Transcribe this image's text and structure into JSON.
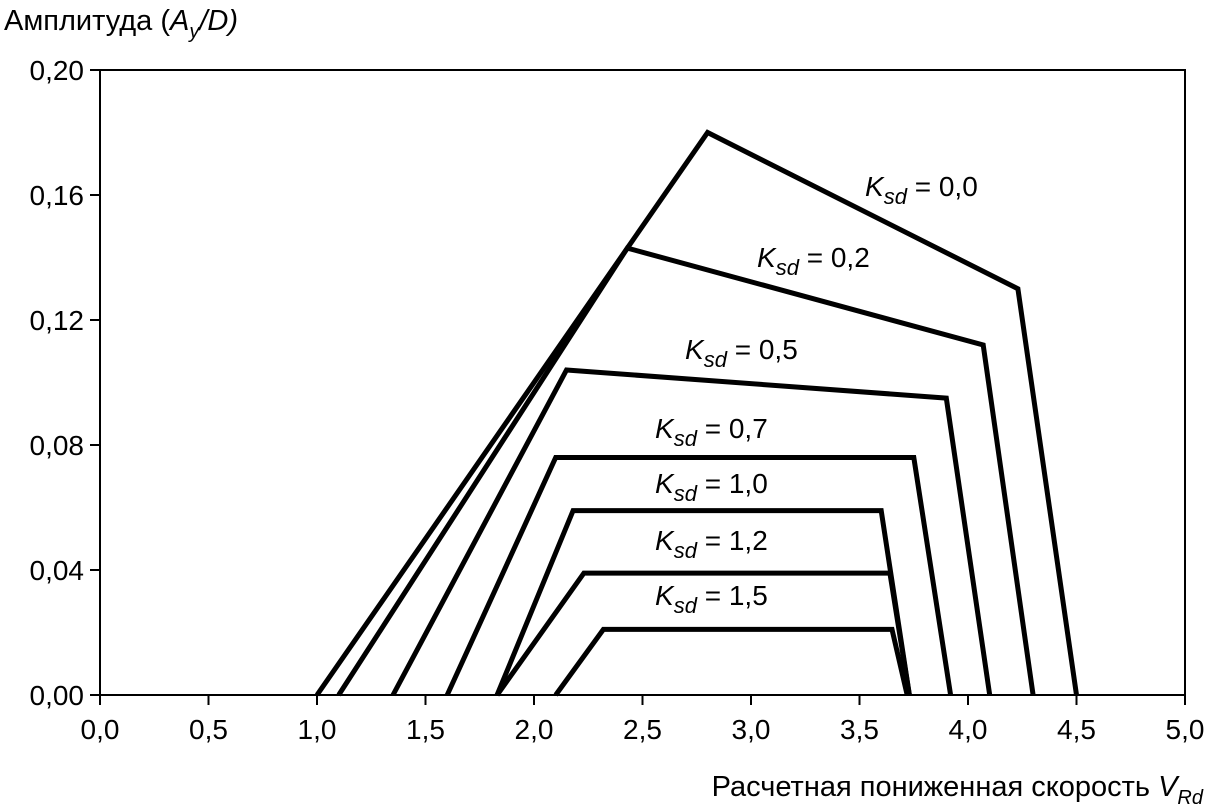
{
  "chart_data": {
    "type": "line",
    "title": "",
    "ylabel": {
      "prefix": "Амплитуда (",
      "A": "A",
      "A_sub": "y",
      "slash": "/D)"
    },
    "xlabel": {
      "text": "Расчетная пониженная скорость ",
      "V": "V",
      "V_sub": "Rd"
    },
    "xlim": [
      0.0,
      5.0
    ],
    "ylim": [
      0.0,
      0.2
    ],
    "xticks": [
      "0,0",
      "0,5",
      "1,0",
      "1,5",
      "2,0",
      "2,5",
      "3,0",
      "3,5",
      "4,0",
      "4,5",
      "5,0"
    ],
    "yticks": [
      "0,00",
      "0,04",
      "0,08",
      "0,12",
      "0,16",
      "0,20"
    ],
    "grid": false,
    "series": [
      {
        "name": "K_sd = 0,0",
        "label_sym": "K",
        "label_sub": "sd",
        "label_val": " = 0,0",
        "points": [
          [
            1.0,
            0.0
          ],
          [
            2.8,
            0.18
          ],
          [
            4.23,
            0.13
          ],
          [
            4.5,
            0.0
          ]
        ]
      },
      {
        "name": "K_sd = 0,2",
        "label_sym": "K",
        "label_sub": "sd",
        "label_val": " = 0,2",
        "points": [
          [
            1.1,
            0.0
          ],
          [
            2.43,
            0.143
          ],
          [
            4.07,
            0.112
          ],
          [
            4.3,
            0.0
          ]
        ]
      },
      {
        "name": "K_sd = 0,5",
        "label_sym": "K",
        "label_sub": "sd",
        "label_val": " = 0,5",
        "points": [
          [
            1.35,
            0.0
          ],
          [
            2.15,
            0.104
          ],
          [
            3.9,
            0.095
          ],
          [
            4.1,
            0.0
          ]
        ]
      },
      {
        "name": "K_sd = 0,7",
        "label_sym": "K",
        "label_sub": "sd",
        "label_val": " = 0,7",
        "points": [
          [
            1.6,
            0.0
          ],
          [
            2.1,
            0.076
          ],
          [
            3.75,
            0.076
          ],
          [
            3.92,
            0.0
          ]
        ]
      },
      {
        "name": "K_sd = 1,0",
        "label_sym": "K",
        "label_sub": "sd",
        "label_val": " = 1,0",
        "points": [
          [
            1.83,
            0.0
          ],
          [
            2.18,
            0.059
          ],
          [
            3.6,
            0.059
          ],
          [
            3.73,
            0.0
          ]
        ]
      },
      {
        "name": "K_sd = 1,2",
        "label_sym": "K",
        "label_sub": "sd",
        "label_val": " = 1,2",
        "points": [
          [
            1.83,
            0.0
          ],
          [
            2.23,
            0.039
          ],
          [
            3.64,
            0.039
          ],
          [
            3.73,
            0.0
          ]
        ]
      },
      {
        "name": "K_sd = 1,5",
        "label_sym": "K",
        "label_sub": "sd",
        "label_val": " = 1,5",
        "points": [
          [
            2.1,
            0.0
          ],
          [
            2.32,
            0.021
          ],
          [
            3.65,
            0.021
          ],
          [
            3.72,
            0.0
          ]
        ]
      }
    ]
  }
}
